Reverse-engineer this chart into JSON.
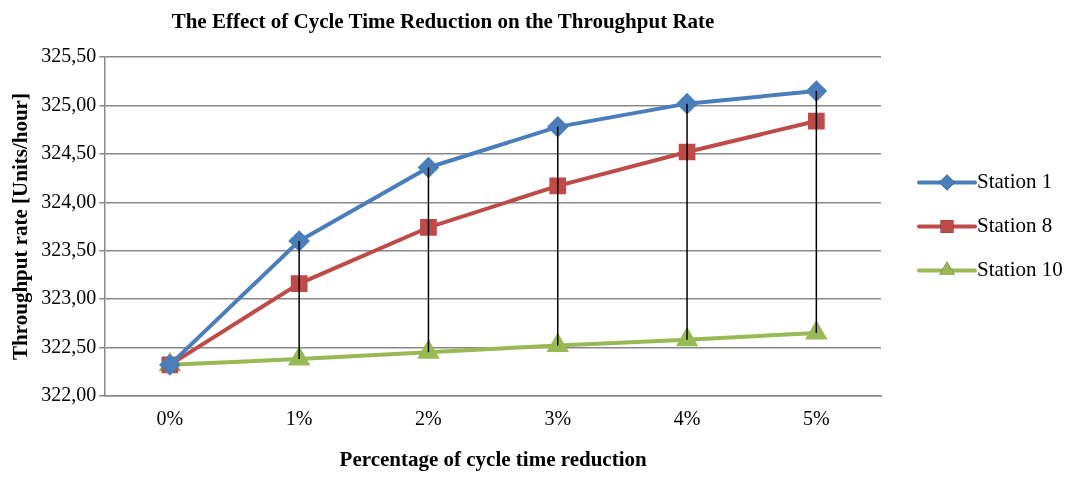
{
  "chart_data": {
    "type": "line",
    "title": "The Effect of Cycle Time Reduction on the Throughput Rate",
    "xlabel": "Percentage of cycle time reduction",
    "ylabel": "Throughput rate [Units/hour]",
    "categories": [
      "0%",
      "1%",
      "2%",
      "3%",
      "4%",
      "5%"
    ],
    "series": [
      {
        "name": "Station 1",
        "color": "#4a7ebb",
        "marker": "diamond",
        "values": [
          322.32,
          323.6,
          324.36,
          324.78,
          325.02,
          325.15
        ]
      },
      {
        "name": "Station 8",
        "color": "#be4b48",
        "marker": "square",
        "values": [
          322.32,
          323.16,
          323.74,
          324.17,
          324.52,
          324.84
        ]
      },
      {
        "name": "Station 10",
        "color": "#98b954",
        "marker": "triangle",
        "values": [
          322.32,
          322.38,
          322.45,
          322.52,
          322.58,
          322.65
        ],
        "errors": [
          null,
          [
            322.38,
            323.6
          ],
          [
            322.45,
            324.36
          ],
          [
            322.52,
            324.78
          ],
          [
            322.58,
            325.02
          ],
          [
            322.65,
            325.15
          ]
        ]
      }
    ],
    "ylim": [
      322,
      325.5
    ],
    "yticks": [
      {
        "value": 322,
        "label": "322,00"
      },
      {
        "value": 322.5,
        "label": "322,50"
      },
      {
        "value": 323,
        "label": "323,00"
      },
      {
        "value": 323.5,
        "label": "323,50"
      },
      {
        "value": 324,
        "label": "324,00"
      },
      {
        "value": 324.5,
        "label": "324,50"
      },
      {
        "value": 325,
        "label": "325,00"
      },
      {
        "value": 325.5,
        "label": "325,50"
      }
    ],
    "grid": "y",
    "legend": "right",
    "line_style": "solid"
  }
}
